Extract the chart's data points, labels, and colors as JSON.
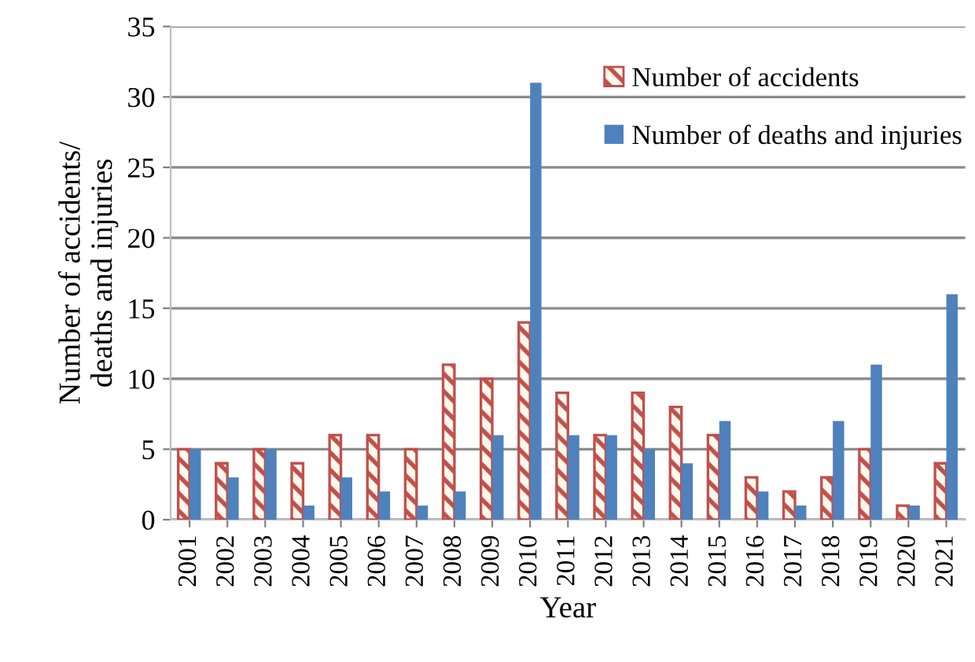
{
  "chart_data": {
    "type": "bar",
    "xlabel": "Year",
    "ylabel": "Number of accidents/\ndeaths and injuries",
    "categories": [
      "2001",
      "2002",
      "2003",
      "2004",
      "2005",
      "2006",
      "2007",
      "2008",
      "2009",
      "2010",
      "2011",
      "2012",
      "2013",
      "2014",
      "2015",
      "2016",
      "2017",
      "2018",
      "2019",
      "2020",
      "2021"
    ],
    "series": [
      {
        "name": "Number of accidents",
        "color": "#c0504d",
        "values": [
          5,
          4,
          5,
          4,
          6,
          6,
          5,
          11,
          10,
          14,
          9,
          6,
          9,
          8,
          6,
          3,
          2,
          3,
          5,
          1,
          4
        ]
      },
      {
        "name": "Number of deaths and injuries",
        "color": "#4f81bd",
        "values": [
          5,
          3,
          5,
          1,
          3,
          2,
          1,
          2,
          6,
          31,
          6,
          6,
          5,
          4,
          7,
          2,
          1,
          7,
          11,
          1,
          16
        ]
      }
    ],
    "ylim": [
      0,
      35
    ],
    "yticks": [
      0,
      5,
      10,
      15,
      20,
      25,
      30,
      35
    ],
    "grid": "y",
    "legend": "top right"
  }
}
